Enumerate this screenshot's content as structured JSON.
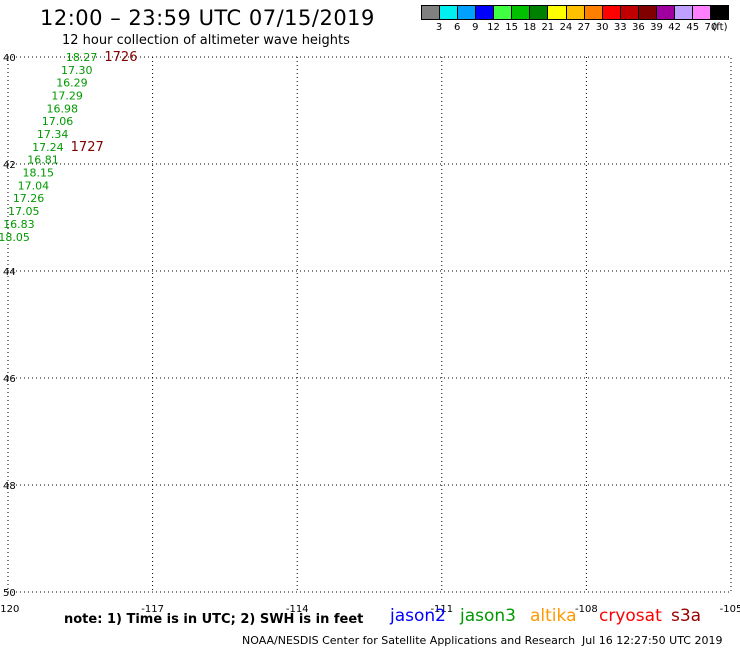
{
  "title": "12:00 – 23:59 UTC 07/15/2019",
  "subtitle": "12 hour collection of altimeter wave heights",
  "legend": {
    "colors": [
      "#808080",
      "#00f0f0",
      "#00a0ff",
      "#0000ff",
      "#40ff40",
      "#00c000",
      "#008000",
      "#ffff00",
      "#ffc000",
      "#ff8000",
      "#ff0000",
      "#c00000",
      "#800000",
      "#a000a0",
      "#c0a0ff",
      "#ff80ff",
      "#000000"
    ],
    "labels": [
      "3",
      "6",
      "9",
      "12",
      "15",
      "18",
      "21",
      "24",
      "27",
      "30",
      "33",
      "36",
      "39",
      "42",
      "45",
      "70",
      "(ft)"
    ]
  },
  "axes": {
    "lon_ticks": [
      "-120",
      "-117",
      "-114",
      "-111",
      "-108",
      "-105"
    ],
    "lat_ticks": [
      "40",
      "42",
      "44",
      "46",
      "48",
      "50"
    ],
    "lon_range": [
      -120,
      -105
    ],
    "lat_range": [
      40,
      50
    ]
  },
  "tracks": [
    {
      "satellite": "jason3",
      "color": "#009900",
      "points": [
        {
          "lon": -118.8,
          "lat": 40.0,
          "swh": "18.27"
        },
        {
          "lon": -118.9,
          "lat": 40.24,
          "swh": "17.30"
        },
        {
          "lon": -119.0,
          "lat": 40.48,
          "swh": "16.29"
        },
        {
          "lon": -119.1,
          "lat": 40.72,
          "swh": "17.29"
        },
        {
          "lon": -119.2,
          "lat": 40.96,
          "swh": "16.98"
        },
        {
          "lon": -119.3,
          "lat": 41.2,
          "swh": "17.06"
        },
        {
          "lon": -119.4,
          "lat": 41.44,
          "swh": "17.34"
        },
        {
          "lon": -119.5,
          "lat": 41.68,
          "swh": "17.24"
        },
        {
          "lon": -119.6,
          "lat": 41.92,
          "swh": "16.81"
        },
        {
          "lon": -119.7,
          "lat": 42.16,
          "swh": "18.15"
        },
        {
          "lon": -119.8,
          "lat": 42.4,
          "swh": "17.04"
        },
        {
          "lon": -119.9,
          "lat": 42.64,
          "swh": "17.26"
        },
        {
          "lon": -120.0,
          "lat": 42.88,
          "swh": "17.05"
        },
        {
          "lon": -120.1,
          "lat": 43.12,
          "swh": "16.83"
        },
        {
          "lon": -120.2,
          "lat": 43.36,
          "swh": "18.05"
        }
      ],
      "time_labels": [
        {
          "lon": -118.0,
          "lat": 40.0,
          "text": "1726"
        },
        {
          "lon": -118.7,
          "lat": 41.68,
          "text": "1727"
        }
      ]
    }
  ],
  "time_label_color": "#800000",
  "note": "note: 1) Time is in UTC; 2) SWH is in feet",
  "satellites": [
    {
      "name": "jason2",
      "color": "#0000ff"
    },
    {
      "name": "jason3",
      "color": "#009900"
    },
    {
      "name": "altika",
      "color": "#ff9900"
    },
    {
      "name": "cryosat",
      "color": "#ff0000"
    },
    {
      "name": "s3a",
      "color": "#990000"
    }
  ],
  "footer_left": "NOAA/NESDIS Center for Satellite Applications and Research",
  "footer_right": "Jul 16 12:27:50 UTC 2019"
}
